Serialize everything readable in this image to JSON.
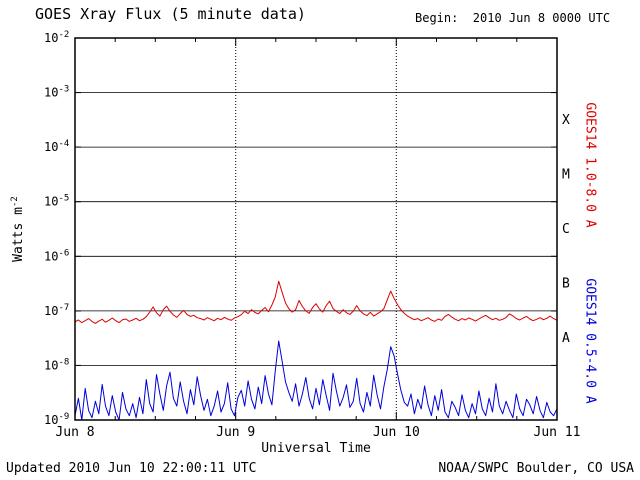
{
  "header": {
    "title": "GOES Xray Flux (5 minute data)",
    "begin_label": "Begin:  2010 Jun 8 0000 UTC"
  },
  "footer": {
    "updated": "Updated 2010 Jun 10 22:00:11 UTC",
    "credit": "NOAA/SWPC Boulder, CO USA"
  },
  "colors": {
    "long_band": "#dd0000",
    "short_band": "#0000dd",
    "axis": "#000000",
    "background": "#ffffff"
  },
  "chart_data": {
    "type": "line",
    "title": "GOES Xray Flux (5 minute data)",
    "xlabel": "Universal Time",
    "ylabel_base": "Watts m",
    "ylabel_exp": "-2",
    "x_axis": "time, Jun 8 0000 UTC to Jun 11 0000 UTC, 72 hours total",
    "hours_span": 72,
    "x_tick_hours": [
      0,
      24,
      48,
      72
    ],
    "x_tick_labels": [
      "Jun 8",
      "Jun 9",
      "Jun 10",
      "Jun 11"
    ],
    "minor_tick_step_hours": 6,
    "y_scale": "log10",
    "ylim": [
      1e-09,
      0.01
    ],
    "y_tick_exponents": [
      -2,
      -3,
      -4,
      -5,
      -6,
      -7,
      -8,
      -9
    ],
    "flare_class_labels": [
      "X",
      "M",
      "C",
      "B",
      "A"
    ],
    "flare_class_mid_exponents": [
      -3.5,
      -4.5,
      -5.5,
      -6.5,
      -7.5
    ],
    "grid": "vertical dotted lines at day boundaries; solid horizontal lines at each decade",
    "legend_position": "rotated labels on right edge",
    "series": [
      {
        "name": "GOES14 1.0-8.0 A",
        "data_name": "long-band-series",
        "color": "#dd0000",
        "scale": 1e-08,
        "units": "W m^-2 (values given in 1e-8 multiples)",
        "values": [
          6.3,
          6.8,
          6.1,
          6.6,
          7.2,
          6.4,
          5.9,
          6.5,
          7.0,
          6.2,
          6.7,
          7.4,
          6.6,
          6.1,
          6.9,
          7.1,
          6.4,
          6.8,
          7.3,
          6.6,
          7.0,
          7.8,
          9.5,
          11.8,
          9.2,
          8.0,
          10.5,
          12.2,
          9.8,
          8.4,
          7.6,
          8.9,
          10.2,
          8.6,
          7.9,
          8.3,
          7.5,
          7.2,
          6.8,
          7.5,
          7.0,
          6.6,
          7.3,
          6.9,
          7.6,
          7.1,
          6.7,
          7.4,
          7.8,
          8.5,
          9.8,
          8.9,
          10.5,
          9.4,
          8.8,
          10.2,
          11.5,
          9.6,
          12.8,
          18.0,
          35.0,
          22.0,
          14.0,
          11.0,
          9.5,
          10.5,
          15.5,
          12.0,
          10.0,
          9.0,
          11.5,
          13.5,
          10.8,
          9.5,
          12.5,
          15.0,
          11.0,
          9.8,
          8.9,
          10.5,
          9.2,
          8.6,
          9.9,
          12.5,
          10.0,
          8.8,
          8.2,
          9.4,
          8.0,
          8.8,
          9.6,
          11.0,
          16.0,
          23.0,
          17.0,
          13.0,
          10.5,
          9.0,
          8.0,
          7.4,
          6.9,
          7.2,
          6.6,
          7.0,
          7.5,
          6.8,
          6.4,
          7.1,
          6.7,
          7.9,
          8.6,
          7.7,
          7.0,
          6.6,
          7.2,
          6.8,
          7.4,
          7.0,
          6.5,
          7.1,
          7.7,
          8.3,
          7.5,
          6.9,
          7.3,
          6.7,
          7.0,
          7.6,
          8.8,
          8.1,
          7.2,
          6.8,
          7.4,
          7.9,
          7.1,
          6.6,
          7.0,
          7.5,
          6.9,
          7.3,
          8.0,
          7.2,
          6.7
        ]
      },
      {
        "name": "GOES14 0.5-4.0 A",
        "data_name": "short-band-series",
        "color": "#0000dd",
        "scale": 1e-09,
        "units": "W m^-2 (values given in 1e-9 multiples)",
        "values": [
          1.2,
          2.5,
          1.0,
          3.8,
          1.5,
          1.1,
          2.2,
          1.3,
          4.5,
          1.8,
          1.2,
          2.8,
          1.4,
          1.0,
          3.2,
          1.6,
          1.2,
          2.0,
          1.1,
          2.6,
          1.3,
          5.5,
          2.0,
          1.4,
          6.8,
          3.0,
          1.5,
          4.2,
          7.5,
          2.5,
          1.8,
          5.0,
          2.2,
          1.3,
          3.6,
          1.9,
          6.2,
          2.8,
          1.5,
          2.4,
          1.2,
          1.8,
          3.4,
          1.4,
          2.0,
          4.8,
          1.6,
          1.2,
          2.6,
          3.5,
          1.8,
          5.2,
          2.4,
          1.6,
          4.0,
          2.0,
          6.5,
          3.0,
          1.9,
          8.0,
          28.0,
          12.0,
          5.0,
          3.2,
          2.2,
          4.6,
          1.8,
          3.0,
          6.0,
          2.5,
          1.6,
          3.8,
          1.9,
          5.5,
          2.8,
          1.5,
          7.2,
          3.4,
          1.8,
          2.6,
          4.4,
          1.7,
          2.2,
          5.8,
          2.0,
          1.4,
          3.2,
          1.8,
          6.6,
          2.9,
          1.6,
          4.1,
          8.5,
          22.0,
          15.0,
          7.0,
          3.5,
          2.1,
          1.8,
          3.0,
          1.3,
          2.4,
          1.6,
          4.2,
          1.9,
          1.2,
          2.8,
          1.5,
          3.6,
          1.4,
          1.1,
          2.2,
          1.7,
          1.2,
          2.9,
          1.5,
          1.1,
          2.0,
          1.3,
          3.4,
          1.6,
          1.2,
          2.5,
          1.4,
          4.6,
          1.8,
          1.3,
          2.2,
          1.5,
          1.1,
          3.0,
          1.6,
          1.2,
          2.4,
          1.9,
          1.3,
          2.7,
          1.5,
          1.1,
          2.1,
          1.4,
          1.2,
          1.6
        ]
      }
    ]
  }
}
